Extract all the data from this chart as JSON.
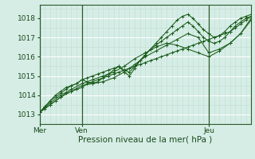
{
  "xlabel": "Pression niveau de la mer( hPa )",
  "bg_color": "#d6ede6",
  "plot_bg_color": "#d6ede6",
  "grid_color_major": "#ffffff",
  "grid_color_minor": "#bcddd4",
  "line_color": "#1a5c1a",
  "ylim": [
    1012.5,
    1018.7
  ],
  "xlim": [
    0,
    120
  ],
  "yticks": [
    1013,
    1014,
    1015,
    1016,
    1017,
    1018
  ],
  "xtick_positions": [
    0,
    24,
    96
  ],
  "xtick_labels": [
    "Mer",
    "Ven",
    "Jeu"
  ],
  "vline_positions": [
    0,
    24,
    96
  ],
  "series": [
    {
      "x": [
        0,
        3,
        6,
        9,
        12,
        15,
        18,
        21,
        24,
        27,
        30,
        33,
        36,
        39,
        42,
        45,
        48,
        51,
        54,
        57,
        60,
        63,
        66,
        69,
        72,
        75,
        78,
        81,
        84,
        87,
        90,
        93,
        96,
        99,
        102,
        105,
        108,
        111,
        114,
        117,
        120
      ],
      "y": [
        1013.1,
        1013.3,
        1013.5,
        1013.7,
        1013.9,
        1014.1,
        1014.2,
        1014.3,
        1014.4,
        1014.6,
        1014.7,
        1014.8,
        1014.9,
        1015.0,
        1015.1,
        1015.2,
        1015.3,
        1015.4,
        1015.5,
        1015.6,
        1015.7,
        1015.8,
        1015.9,
        1016.0,
        1016.1,
        1016.2,
        1016.3,
        1016.4,
        1016.5,
        1016.6,
        1016.7,
        1016.8,
        1016.9,
        1017.0,
        1017.1,
        1017.2,
        1017.3,
        1017.5,
        1017.7,
        1017.9,
        1018.1
      ],
      "marker": "+"
    },
    {
      "x": [
        0,
        3,
        6,
        9,
        12,
        15,
        18,
        21,
        24,
        27,
        30,
        33,
        36,
        39,
        42,
        45,
        48,
        51,
        54,
        57,
        60,
        63,
        66,
        69,
        72,
        75,
        78,
        81,
        84,
        87,
        90,
        93,
        96,
        99,
        102,
        105,
        108,
        111,
        114,
        117,
        120
      ],
      "y": [
        1013.1,
        1013.4,
        1013.7,
        1014.0,
        1014.2,
        1014.4,
        1014.5,
        1014.6,
        1014.8,
        1014.9,
        1015.0,
        1015.1,
        1015.2,
        1015.3,
        1015.4,
        1015.5,
        1015.3,
        1015.2,
        1015.5,
        1015.8,
        1016.1,
        1016.4,
        1016.7,
        1017.0,
        1017.3,
        1017.6,
        1017.9,
        1018.1,
        1018.2,
        1018.0,
        1017.7,
        1017.4,
        1017.2,
        1017.0,
        1017.1,
        1017.3,
        1017.6,
        1017.8,
        1018.0,
        1018.1,
        1018.2
      ],
      "marker": "+"
    },
    {
      "x": [
        0,
        3,
        6,
        9,
        12,
        15,
        18,
        21,
        24,
        27,
        30,
        33,
        36,
        39,
        42,
        45,
        48,
        51,
        54,
        57,
        60,
        63,
        66,
        69,
        72,
        75,
        78,
        81,
        84,
        87,
        90,
        93,
        96,
        99,
        102,
        105,
        108,
        111,
        114,
        117,
        120
      ],
      "y": [
        1013.1,
        1013.4,
        1013.7,
        1013.9,
        1014.1,
        1014.3,
        1014.5,
        1014.6,
        1014.8,
        1014.7,
        1014.6,
        1014.7,
        1014.9,
        1015.1,
        1015.3,
        1015.5,
        1015.2,
        1015.0,
        1015.4,
        1015.8,
        1016.1,
        1016.4,
        1016.6,
        1016.8,
        1017.0,
        1017.2,
        1017.4,
        1017.6,
        1017.8,
        1017.6,
        1017.3,
        1017.0,
        1016.8,
        1016.7,
        1016.8,
        1017.0,
        1017.3,
        1017.6,
        1017.8,
        1018.0,
        1018.1
      ],
      "marker": "+"
    },
    {
      "x": [
        0,
        6,
        12,
        18,
        24,
        30,
        36,
        42,
        48,
        54,
        60,
        66,
        72,
        78,
        84,
        90,
        96,
        102,
        108,
        114,
        120
      ],
      "y": [
        1013.1,
        1013.5,
        1013.9,
        1014.2,
        1014.5,
        1014.6,
        1014.7,
        1014.9,
        1015.2,
        1015.6,
        1016.0,
        1016.3,
        1016.6,
        1016.9,
        1017.2,
        1017.0,
        1016.2,
        1016.4,
        1016.7,
        1017.2,
        1018.0
      ],
      "marker": "+"
    },
    {
      "x": [
        0,
        6,
        12,
        18,
        24,
        30,
        36,
        42,
        48,
        54,
        60,
        66,
        72,
        78,
        84,
        90,
        96,
        102,
        108,
        114,
        120
      ],
      "y": [
        1013.1,
        1013.6,
        1014.0,
        1014.3,
        1014.6,
        1014.8,
        1015.0,
        1015.2,
        1015.5,
        1015.9,
        1016.2,
        1016.5,
        1016.7,
        1016.6,
        1016.4,
        1016.2,
        1016.0,
        1016.3,
        1016.7,
        1017.2,
        1017.9
      ],
      "marker": "+"
    }
  ]
}
